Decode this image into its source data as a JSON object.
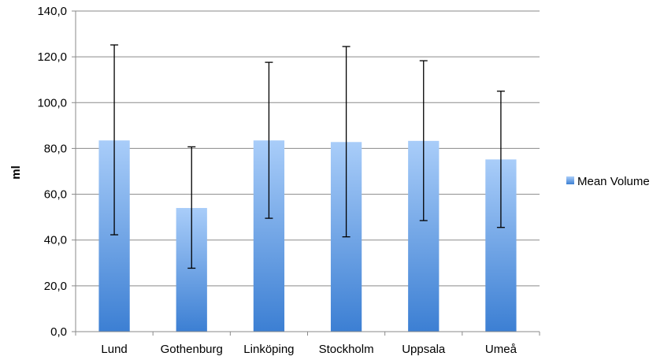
{
  "chart_data": {
    "type": "bar",
    "title": "",
    "xlabel": "",
    "ylabel": "ml",
    "ylim": [
      0,
      140
    ],
    "ytick_step": 20,
    "ytick_labels": [
      "0,0",
      "20,0",
      "40,0",
      "60,0",
      "80,0",
      "100,0",
      "120,0",
      "140,0"
    ],
    "categories": [
      "Lund",
      "Gothenburg",
      "Linköping",
      "Stockholm",
      "Uppsala",
      "Umeå"
    ],
    "series": [
      {
        "name": "Mean Volume",
        "values": [
          83.5,
          54.0,
          83.5,
          82.8,
          83.3,
          75.2
        ],
        "error_low": [
          42.3,
          27.7,
          49.5,
          41.4,
          48.5,
          45.5
        ],
        "error_high": [
          125.2,
          80.7,
          117.6,
          124.5,
          118.3,
          105.0
        ]
      }
    ],
    "grid": true,
    "legend_position": "right",
    "colors": {
      "bar_top": "#a9cdf9",
      "bar_bottom": "#3c7fd3",
      "grid": "#8a8a8a",
      "axis": "#8a8a8a",
      "error_bar": "#000000"
    }
  }
}
